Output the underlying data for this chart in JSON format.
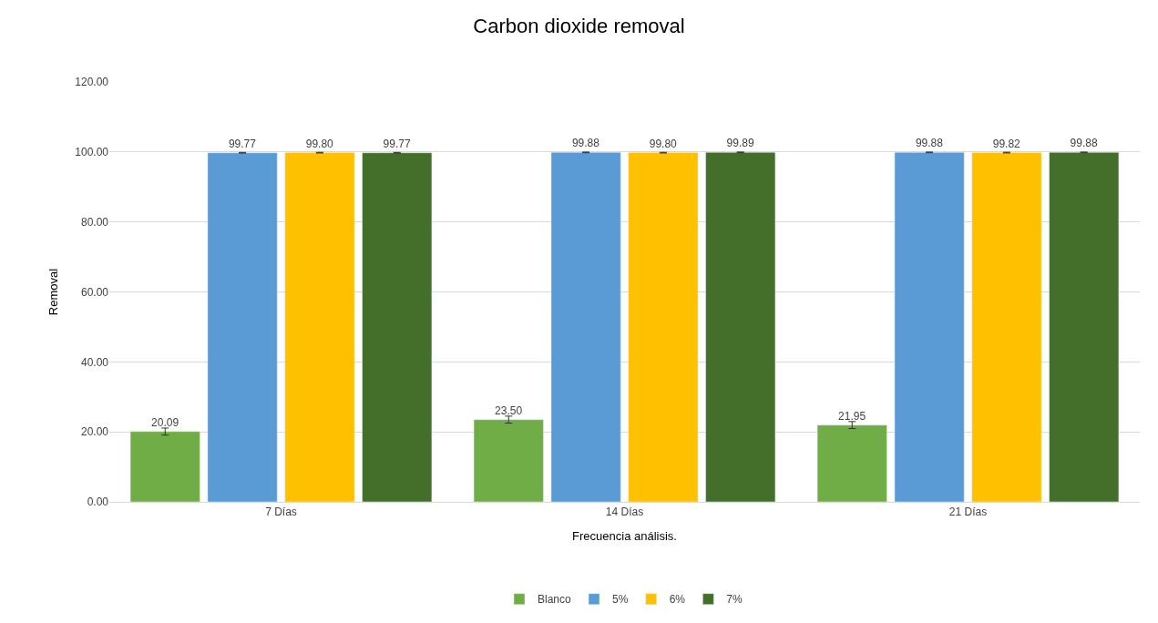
{
  "chart_data": {
    "type": "bar",
    "title": "Carbon dioxide removal",
    "xlabel": "Frecuencia análisis.",
    "ylabel": "Removal",
    "categories": [
      "7 Días",
      "14 Días",
      "21 Días"
    ],
    "series": [
      {
        "name": "Blanco",
        "color": "#70ad47",
        "values": [
          20.09,
          23.5,
          21.95
        ],
        "value_labels": [
          "20.09",
          "23.50",
          "21.95"
        ],
        "errors": [
          1,
          1,
          1
        ]
      },
      {
        "name": "5%",
        "color": "#5b9bd5",
        "values": [
          99.77,
          99.88,
          99.88
        ],
        "value_labels": [
          "99.77",
          "99.88",
          "99.88"
        ],
        "errors": [
          0.1,
          0.1,
          0.1
        ]
      },
      {
        "name": "6%",
        "color": "#ffc000",
        "values": [
          99.8,
          99.8,
          99.82
        ],
        "value_labels": [
          "99.80",
          "99.80",
          "99.82"
        ],
        "errors": [
          0.1,
          0.1,
          0.1
        ]
      },
      {
        "name": "7%",
        "color": "#436f2b",
        "values": [
          99.77,
          99.89,
          99.88
        ],
        "value_labels": [
          "99.77",
          "99.89",
          "99.88"
        ],
        "errors": [
          0.1,
          0.1,
          0.1
        ]
      }
    ],
    "ylim": [
      0,
      120
    ],
    "yticks": [
      {
        "value": 0,
        "label": "0.00"
      },
      {
        "value": 20,
        "label": "20.00"
      },
      {
        "value": 40,
        "label": "40.00"
      },
      {
        "value": 60,
        "label": "60.00"
      },
      {
        "value": 80,
        "label": "80.00"
      },
      {
        "value": 100,
        "label": "100.00"
      },
      {
        "value": 120,
        "label": "120.00"
      }
    ],
    "grid": "y",
    "legend": "bottom"
  }
}
